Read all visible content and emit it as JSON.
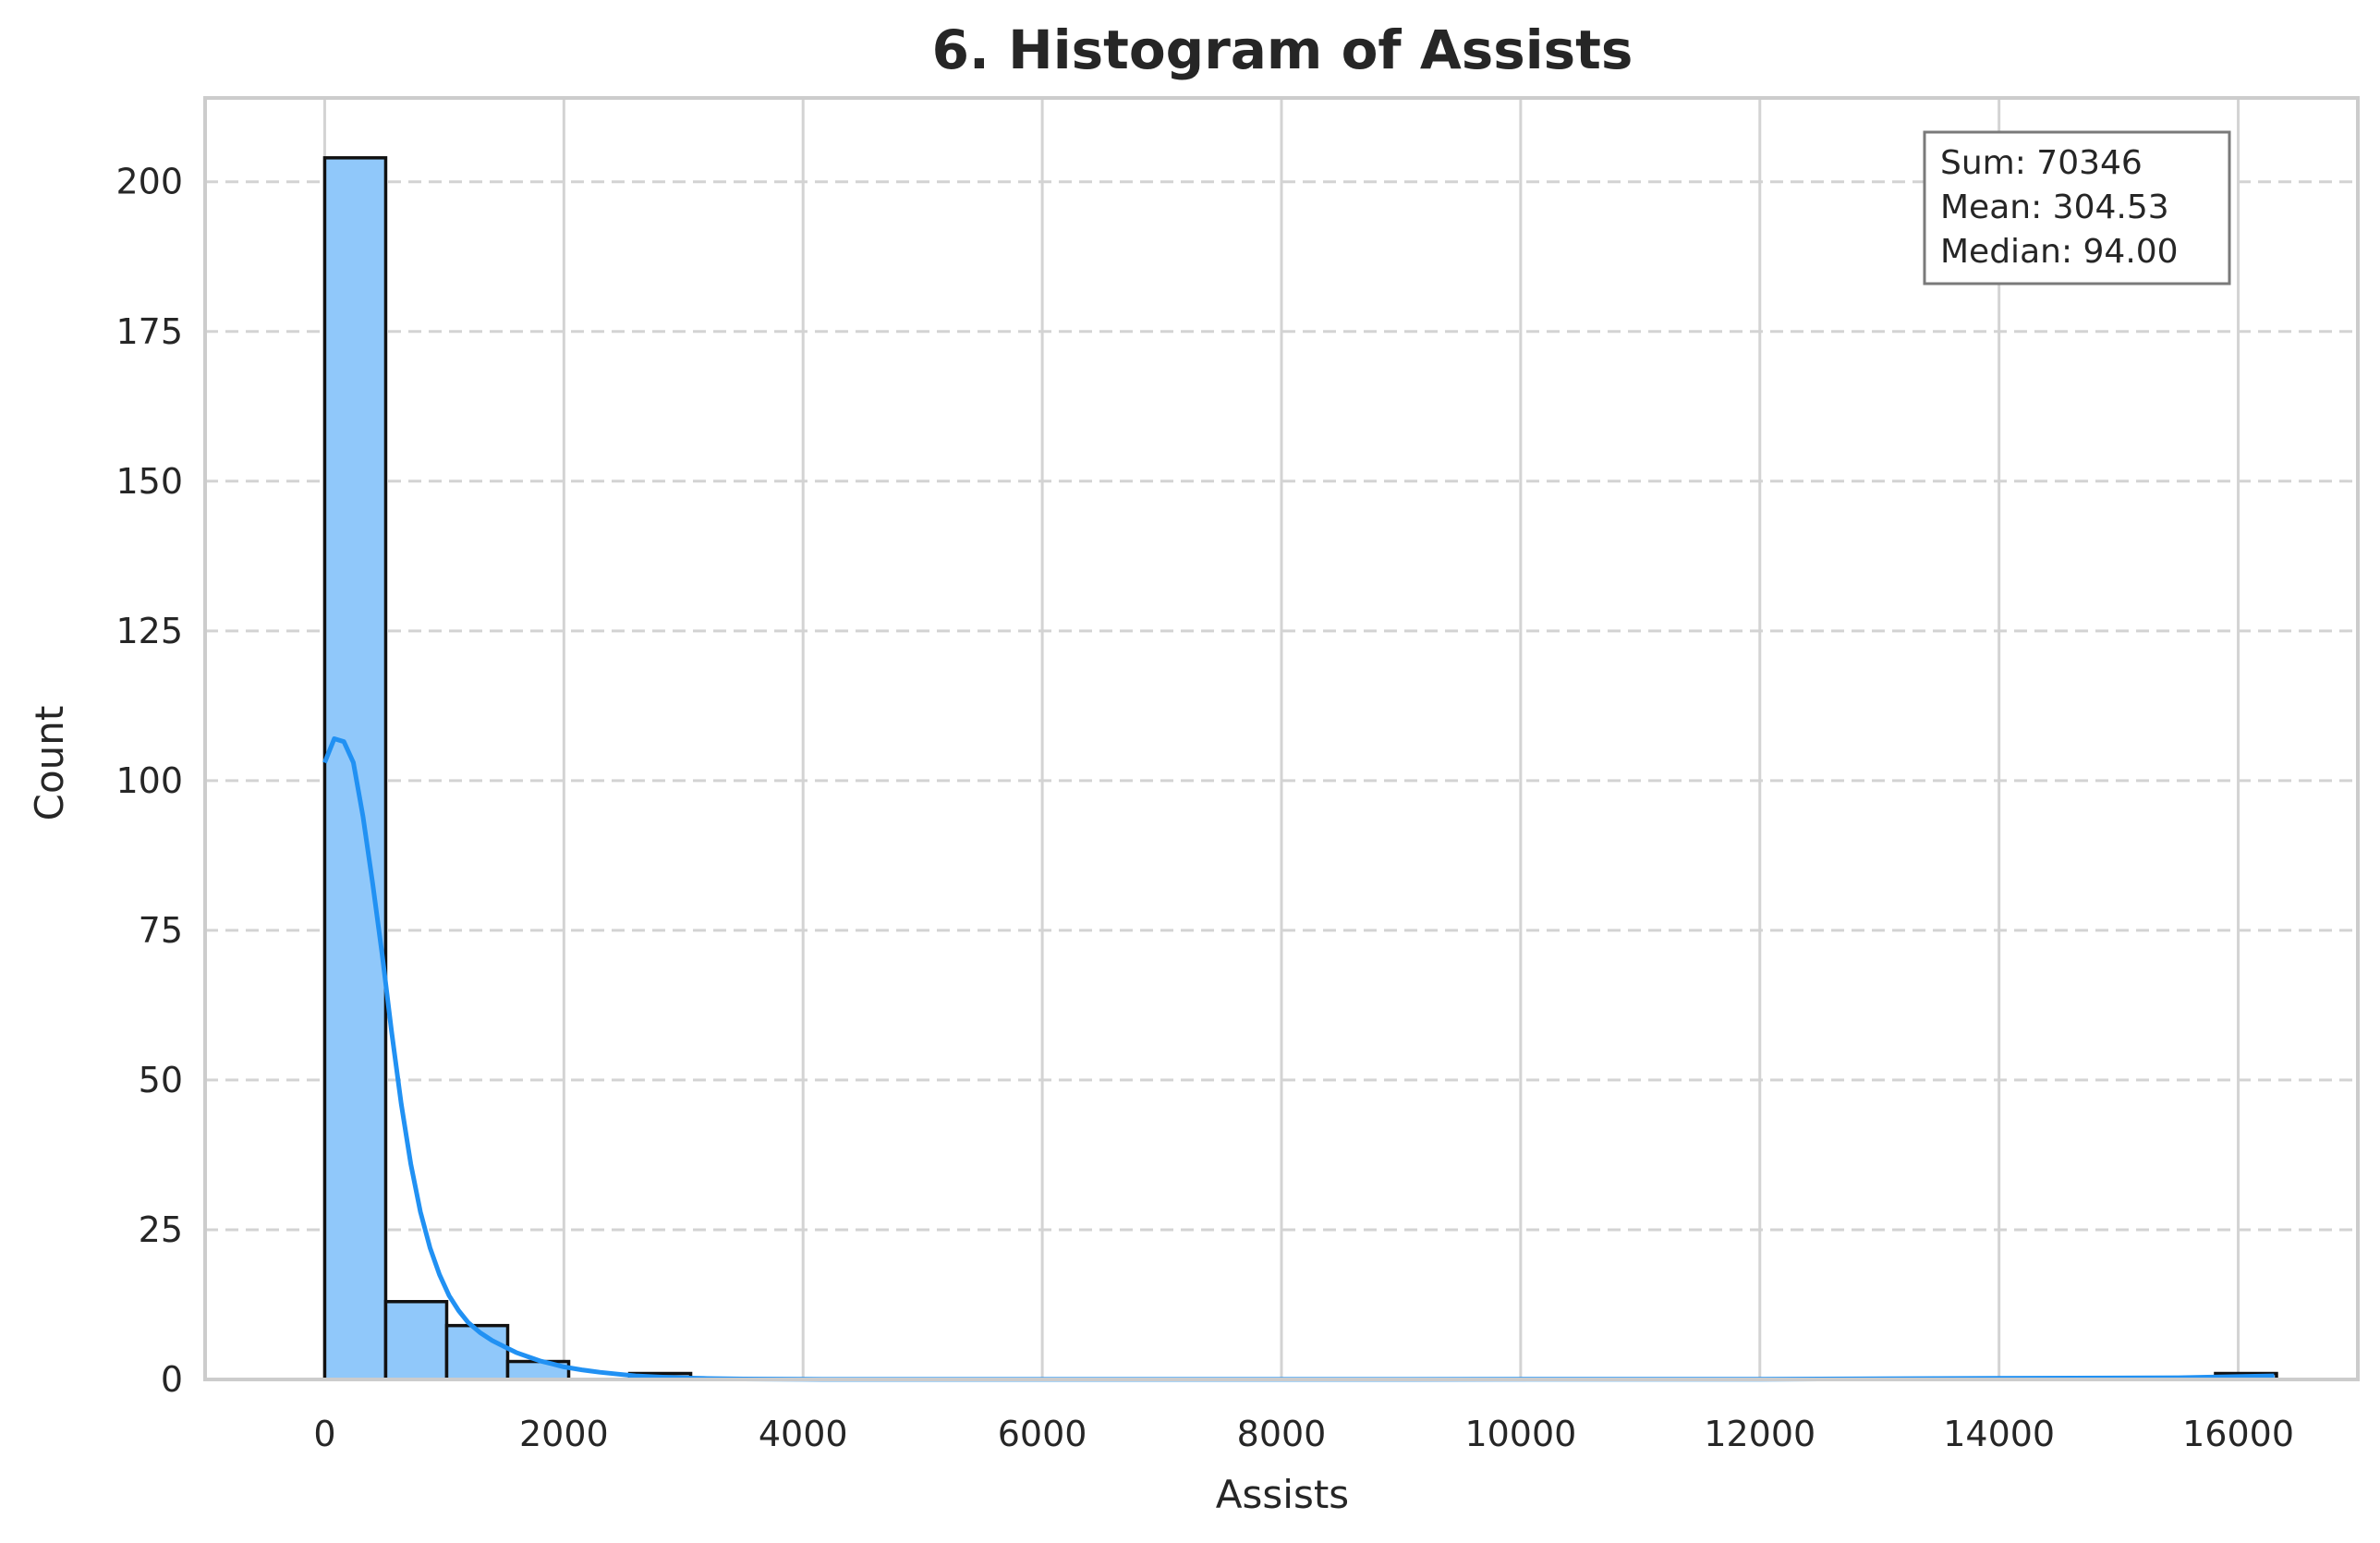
{
  "chart_data": {
    "type": "bar",
    "title": "6. Histogram of Assists",
    "xlabel": "Assists",
    "ylabel": "Count",
    "xlim": [
      -1000,
      17000
    ],
    "ylim": [
      0,
      214
    ],
    "x_ticks": [
      0,
      2000,
      4000,
      6000,
      8000,
      10000,
      12000,
      14000,
      16000
    ],
    "y_ticks": [
      0,
      25,
      50,
      75,
      100,
      125,
      150,
      175,
      200
    ],
    "grid": true,
    "bins": [
      {
        "start": 0,
        "end": 510,
        "count": 204
      },
      {
        "start": 510,
        "end": 1020,
        "count": 13
      },
      {
        "start": 1020,
        "end": 1530,
        "count": 9
      },
      {
        "start": 1530,
        "end": 2040,
        "count": 3
      },
      {
        "start": 2550,
        "end": 3060,
        "count": 1
      },
      {
        "start": 15810,
        "end": 16320,
        "count": 1
      }
    ],
    "kde": {
      "x": [
        0,
        80,
        160,
        240,
        320,
        400,
        480,
        560,
        640,
        720,
        800,
        880,
        960,
        1040,
        1120,
        1200,
        1300,
        1400,
        1500,
        1600,
        1700,
        1800,
        1900,
        2000,
        2150,
        2300,
        2450,
        2600,
        2800,
        3000,
        3200,
        3500,
        4000,
        5000,
        8000,
        12000,
        15500,
        16300
      ],
      "y": [
        103,
        107,
        106.5,
        103,
        94,
        83,
        71,
        58,
        46,
        36,
        28,
        22,
        17.5,
        14,
        11.5,
        9.5,
        7.8,
        6.5,
        5.5,
        4.5,
        3.8,
        3.1,
        2.6,
        2.1,
        1.6,
        1.2,
        0.9,
        0.6,
        0.4,
        0.25,
        0.15,
        0.08,
        0.03,
        0.02,
        0.02,
        0.05,
        0.3,
        0.6
      ]
    },
    "stats": {
      "sum": "Sum: 70346",
      "mean": "Mean: 304.53",
      "median": "Median: 94.00"
    },
    "colors": {
      "bar_fill": "#90c8fa",
      "bar_edge": "#111111",
      "kde_line": "#2191f3",
      "grid": "#d3d3d3",
      "spine": "#cccccc"
    }
  }
}
